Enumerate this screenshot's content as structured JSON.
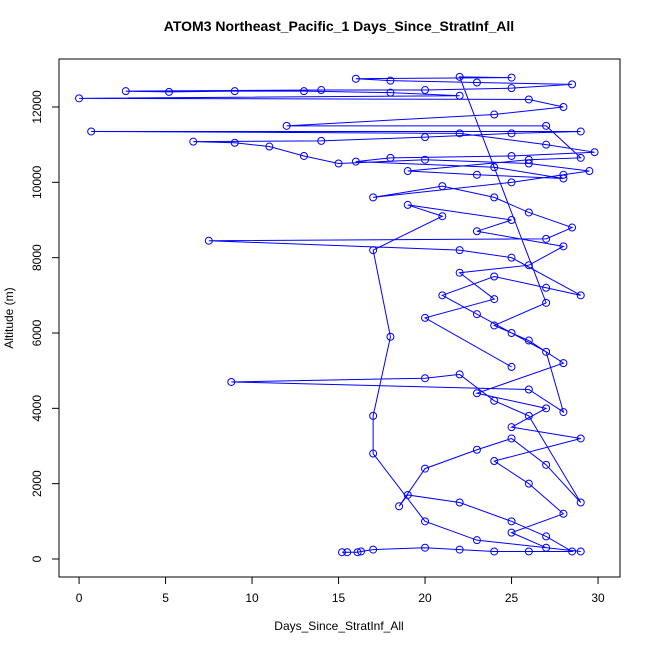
{
  "chart_data": {
    "type": "scatter",
    "connect": true,
    "title": "ATOM3 Northeast_Pacific_1 Days_Since_StratInf_All",
    "x_label": "Days_Since_StratInf_All",
    "y_label": "Altitude (m)",
    "xlim": [
      -1.16,
      31.27
    ],
    "ylim": [
      -478,
      13274
    ],
    "xticks": [
      0,
      5,
      10,
      15,
      20,
      25,
      30
    ],
    "yticks": [
      0,
      2000,
      4000,
      6000,
      8000,
      10000,
      12000
    ],
    "x": [
      15.2,
      15.5,
      16.1,
      16.3,
      17,
      20,
      22,
      24,
      26,
      28.5,
      27,
      25,
      22,
      19,
      18.5,
      20,
      23,
      25,
      27,
      29,
      26,
      24,
      22,
      20,
      8.8,
      26,
      28,
      27,
      25,
      23,
      21,
      24,
      27,
      29,
      25,
      22,
      7.5,
      27,
      28.5,
      26,
      24,
      21,
      17,
      25,
      28,
      29.5,
      26,
      20,
      15,
      13,
      11,
      9,
      6.6,
      14,
      20,
      25,
      29,
      0.7,
      22,
      27,
      29.8,
      25,
      18,
      16,
      24,
      28,
      23,
      19,
      26,
      29,
      27,
      12,
      24,
      28,
      26,
      0,
      22,
      18,
      13,
      9,
      5.2,
      2.7,
      14,
      20,
      25,
      28.5,
      23,
      18,
      16,
      25,
      22,
      27,
      24,
      26,
      28,
      23,
      27,
      25,
      29,
      24,
      26,
      28,
      25,
      27,
      29,
      23,
      20,
      17,
      17,
      18,
      17,
      21,
      19,
      25,
      23,
      28,
      26,
      22,
      24,
      20,
      25
    ],
    "series": [
      {
        "color": "#0000ff",
        "values": [
          180,
          180,
          180,
          200,
          250,
          300,
          250,
          200,
          200,
          200,
          600,
          1000,
          1500,
          1700,
          1400,
          2400,
          2900,
          3200,
          2500,
          1500,
          3800,
          4200,
          4900,
          4800,
          4700,
          4500,
          3900,
          5500,
          6000,
          6500,
          7000,
          7500,
          7200,
          7000,
          8000,
          8200,
          8450,
          8500,
          8800,
          9200,
          9600,
          9900,
          9600,
          10000,
          10200,
          10300,
          10500,
          10600,
          10500,
          10700,
          10950,
          11050,
          11080,
          11100,
          11200,
          11300,
          11350,
          11350,
          11300,
          11000,
          10800,
          10700,
          10650,
          10550,
          10400,
          10100,
          10200,
          10300,
          10600,
          10650,
          11500,
          11500,
          11800,
          12000,
          12200,
          12230,
          12300,
          12380,
          12420,
          12420,
          12400,
          12420,
          12450,
          12450,
          12500,
          12600,
          12650,
          12700,
          12750,
          12780,
          12800,
          6800,
          6200,
          5800,
          5200,
          4400,
          4000,
          3500,
          3200,
          2600,
          2000,
          1200,
          700,
          300,
          200,
          500,
          1000,
          2800,
          3800,
          5900,
          8200,
          9100,
          9400,
          9000,
          8700,
          8300,
          7800,
          7600,
          6900,
          6400,
          5100
        ]
      }
    ]
  }
}
